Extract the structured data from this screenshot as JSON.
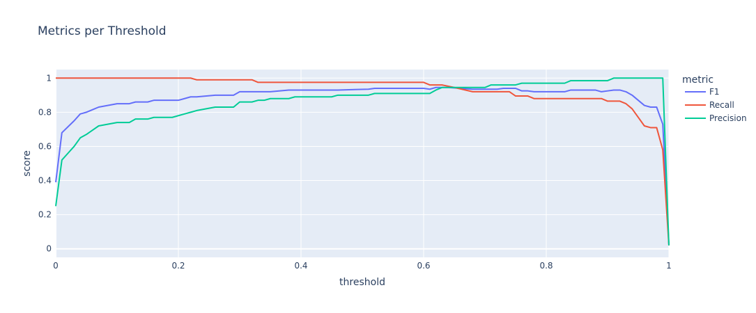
{
  "chart_data": {
    "type": "line",
    "title": "Metrics per Threshold",
    "xlabel": "threshold",
    "ylabel": "score",
    "xlim": [
      0,
      1
    ],
    "ylim": [
      -0.05,
      1.05
    ],
    "x_ticks": [
      0,
      0.2,
      0.4,
      0.6,
      0.8,
      1
    ],
    "y_ticks": [
      0,
      0.2,
      0.4,
      0.6,
      0.8,
      1
    ],
    "x_tick_labels": [
      "0",
      "0.2",
      "0.4",
      "0.6",
      "0.8",
      "1"
    ],
    "y_tick_labels": [
      "0",
      "0.2",
      "0.4",
      "0.6",
      "0.8",
      "1"
    ],
    "grid": true,
    "legend_title": "metric",
    "legend_position": "right",
    "series": [
      {
        "name": "F1",
        "color": "#636efa",
        "x": [
          0,
          0.01,
          0.03,
          0.04,
          0.05,
          0.07,
          0.1,
          0.12,
          0.13,
          0.15,
          0.16,
          0.2,
          0.21,
          0.22,
          0.23,
          0.26,
          0.29,
          0.3,
          0.35,
          0.38,
          0.46,
          0.51,
          0.52,
          0.6,
          0.61,
          0.62,
          0.64,
          0.68,
          0.72,
          0.73,
          0.75,
          0.76,
          0.77,
          0.78,
          0.83,
          0.84,
          0.88,
          0.89,
          0.9,
          0.91,
          0.92,
          0.93,
          0.94,
          0.95,
          0.96,
          0.97,
          0.98,
          0.99,
          1.0
        ],
        "y": [
          0.39,
          0.68,
          0.75,
          0.79,
          0.8,
          0.83,
          0.85,
          0.85,
          0.86,
          0.86,
          0.87,
          0.87,
          0.88,
          0.89,
          0.89,
          0.9,
          0.9,
          0.92,
          0.92,
          0.93,
          0.93,
          0.935,
          0.94,
          0.94,
          0.935,
          0.945,
          0.945,
          0.935,
          0.935,
          0.94,
          0.94,
          0.925,
          0.925,
          0.92,
          0.92,
          0.93,
          0.93,
          0.92,
          0.925,
          0.93,
          0.93,
          0.92,
          0.9,
          0.87,
          0.84,
          0.83,
          0.83,
          0.73,
          0.02
        ]
      },
      {
        "name": "Recall",
        "color": "#ef553b",
        "x": [
          0,
          0.22,
          0.23,
          0.32,
          0.33,
          0.6,
          0.61,
          0.63,
          0.65,
          0.68,
          0.74,
          0.75,
          0.77,
          0.78,
          0.89,
          0.9,
          0.92,
          0.93,
          0.94,
          0.95,
          0.96,
          0.97,
          0.98,
          0.99,
          1.0
        ],
        "y": [
          1.0,
          1.0,
          0.99,
          0.99,
          0.975,
          0.975,
          0.96,
          0.96,
          0.945,
          0.92,
          0.92,
          0.895,
          0.895,
          0.88,
          0.88,
          0.865,
          0.865,
          0.85,
          0.82,
          0.77,
          0.72,
          0.71,
          0.71,
          0.58,
          0.02
        ]
      },
      {
        "name": "Precision",
        "color": "#00cc96",
        "x": [
          0,
          0.01,
          0.02,
          0.03,
          0.04,
          0.05,
          0.07,
          0.1,
          0.12,
          0.13,
          0.15,
          0.16,
          0.19,
          0.21,
          0.22,
          0.23,
          0.26,
          0.29,
          0.3,
          0.32,
          0.33,
          0.34,
          0.35,
          0.38,
          0.39,
          0.45,
          0.46,
          0.51,
          0.52,
          0.61,
          0.62,
          0.63,
          0.7,
          0.71,
          0.75,
          0.76,
          0.83,
          0.84,
          0.9,
          0.91,
          0.99,
          1.0
        ],
        "y": [
          0.25,
          0.52,
          0.56,
          0.6,
          0.65,
          0.67,
          0.72,
          0.74,
          0.74,
          0.76,
          0.76,
          0.77,
          0.77,
          0.79,
          0.8,
          0.81,
          0.83,
          0.83,
          0.86,
          0.86,
          0.87,
          0.87,
          0.88,
          0.88,
          0.89,
          0.89,
          0.9,
          0.9,
          0.91,
          0.91,
          0.93,
          0.945,
          0.945,
          0.96,
          0.96,
          0.97,
          0.97,
          0.985,
          0.985,
          1.0,
          1.0,
          0.02
        ]
      }
    ]
  }
}
